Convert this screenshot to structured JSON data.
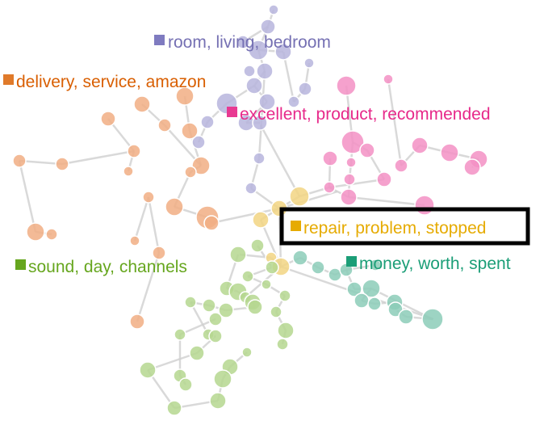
{
  "clusters": [
    {
      "id": "room",
      "label": "room, living, bedroom",
      "color": "#7570b3",
      "dot_color": "#7f7bc0"
    },
    {
      "id": "delivery",
      "label": "delivery, service, amazon",
      "color": "#d95f02",
      "dot_color": "#e07a2a"
    },
    {
      "id": "excellent",
      "label": "excellent, product, recommended",
      "color": "#e7298a",
      "dot_color": "#e83a92"
    },
    {
      "id": "repair",
      "label": "repair, problem, stopped",
      "color": "#e6ab02",
      "dot_color": "#e6ab02",
      "selected": true
    },
    {
      "id": "sound",
      "label": "sound, day, channels",
      "color": "#66a61e",
      "dot_color": "#66a61e"
    },
    {
      "id": "money",
      "label": "money, worth, spent",
      "color": "#1b9e77",
      "dot_color": "#1b9e77"
    }
  ],
  "node_colors": {
    "room": "#b7b5dd",
    "delivery": "#f1ae84",
    "excellent": "#f391c4",
    "repair": "#f2d582",
    "sound": "#b5d78f",
    "money": "#8ccdb9"
  },
  "edge_color": "#cfcfcf"
}
